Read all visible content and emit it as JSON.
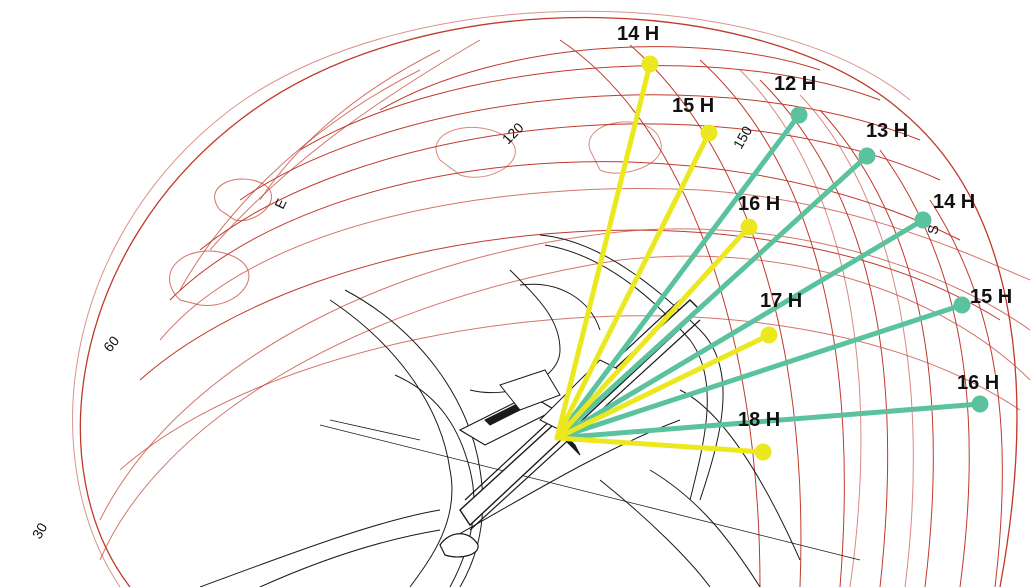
{
  "colors": {
    "sunpath_grid": "#c0392b",
    "sunpath_grid_light": "#e7a7a7",
    "site_lines": "#1a1a1a",
    "yellow_rays": "#ece81f",
    "teal_rays": "#5bc2a0"
  },
  "axis_labels": {
    "a30": "30",
    "a60": "60",
    "a120": "120",
    "a150": "150",
    "east": "E",
    "south": "S"
  },
  "yellow_hours": [
    {
      "label": "14 H"
    },
    {
      "label": "15 H"
    },
    {
      "label": "16 H"
    },
    {
      "label": "17 H"
    },
    {
      "label": "18 H"
    }
  ],
  "teal_hours": [
    {
      "label": "12 H"
    },
    {
      "label": "13 H"
    },
    {
      "label": "14 H"
    },
    {
      "label": "15 H"
    },
    {
      "label": "16 H"
    }
  ]
}
